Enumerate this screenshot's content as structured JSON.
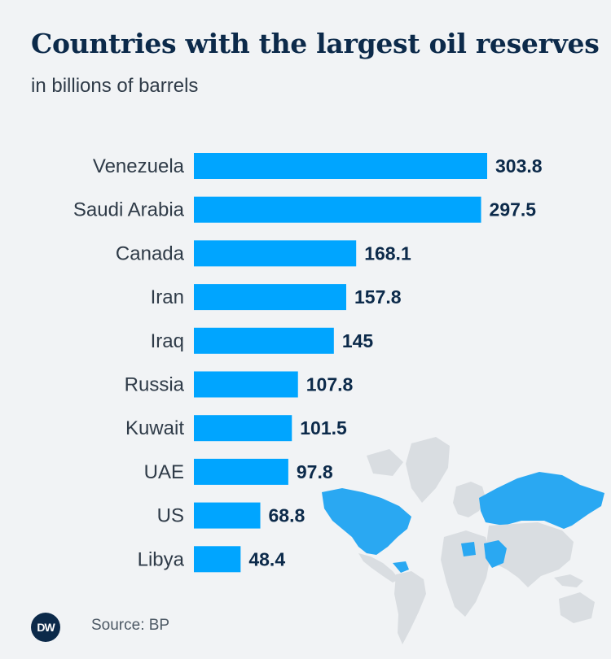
{
  "header": {
    "title": "Countries with the largest oil reserves",
    "subtitle": "in billions of barrels"
  },
  "footer": {
    "logo_text": "DW",
    "source": "Source: BP"
  },
  "colors": {
    "bar": "#00a5ff",
    "background": "#f1f3f5",
    "title": "#0c2a4a",
    "map_land": "#d9dde1",
    "map_highlight": "#2aa8f2"
  },
  "chart_data": {
    "type": "bar",
    "orientation": "horizontal",
    "title": "Countries with the largest oil reserves",
    "subtitle": "in billions of barrels",
    "xlabel": "",
    "ylabel": "",
    "xlim": [
      0,
      320
    ],
    "grid": false,
    "categories": [
      "Venezuela",
      "Saudi Arabia",
      "Canada",
      "Iran",
      "Iraq",
      "Russia",
      "Kuwait",
      "UAE",
      "US",
      "Libya"
    ],
    "values": [
      303.8,
      297.5,
      168.1,
      157.8,
      145,
      107.8,
      101.5,
      97.8,
      68.8,
      48.4
    ],
    "value_labels": [
      "303.8",
      "297.5",
      "168.1",
      "157.8",
      "145",
      "107.8",
      "101.5",
      "97.8",
      "68.8",
      "48.4"
    ]
  }
}
